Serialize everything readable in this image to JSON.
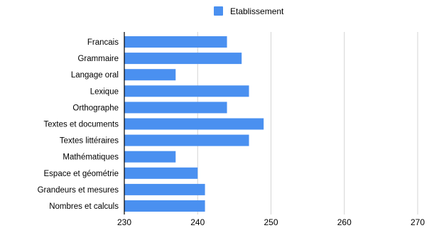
{
  "chart_data": {
    "type": "bar",
    "orientation": "horizontal",
    "categories": [
      "Francais",
      "Grammaire",
      "Langage oral",
      "Lexique",
      "Orthographe",
      "Textes et documents",
      "Textes littéraires",
      "Mathématiques",
      "Espace et géométrie",
      "Grandeurs et mesures",
      "Nombres et calculs"
    ],
    "series": [
      {
        "name": "Etablissement",
        "color": "#4a90f0",
        "values": [
          244,
          246,
          237,
          247,
          244,
          249,
          247,
          237,
          240,
          241,
          241
        ]
      }
    ],
    "title": "",
    "xlabel": "",
    "ylabel": "",
    "xlim": [
      230,
      270
    ],
    "xticks": [
      230,
      240,
      250,
      260,
      270
    ],
    "grid": true,
    "legend_position": "top"
  }
}
